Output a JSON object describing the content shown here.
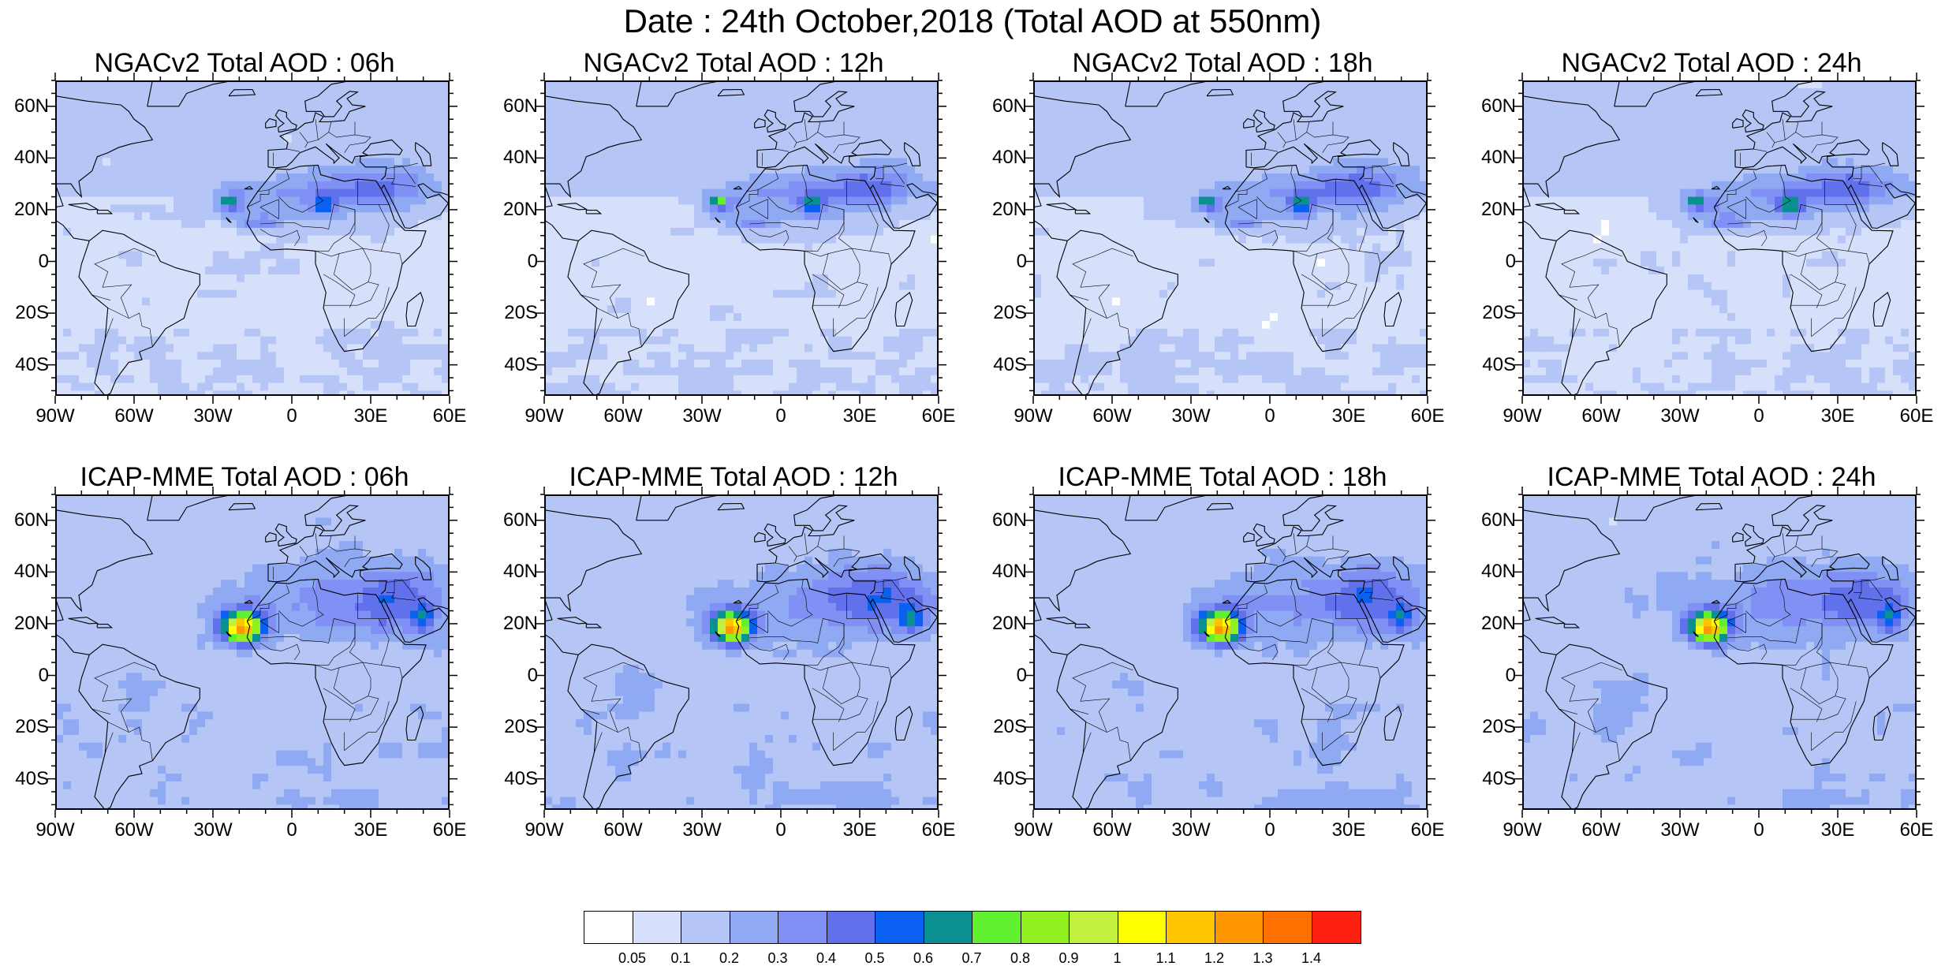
{
  "title": "Date : 24th October,2018 (Total AOD at 550nm)",
  "panels": [
    {
      "title": "NGACv2 Total AOD : 06h",
      "model": "NGACv2",
      "hour": 6
    },
    {
      "title": "NGACv2 Total AOD : 12h",
      "model": "NGACv2",
      "hour": 12
    },
    {
      "title": "NGACv2 Total AOD : 18h",
      "model": "NGACv2",
      "hour": 18
    },
    {
      "title": "NGACv2 Total AOD : 24h",
      "model": "NGACv2",
      "hour": 24
    },
    {
      "title": "ICAP-MME Total AOD : 06h",
      "model": "ICAP-MME",
      "hour": 6
    },
    {
      "title": "ICAP-MME Total AOD : 12h",
      "model": "ICAP-MME",
      "hour": 12
    },
    {
      "title": "ICAP-MME Total AOD : 18h",
      "model": "ICAP-MME",
      "hour": 18
    },
    {
      "title": "ICAP-MME Total AOD : 24h",
      "model": "ICAP-MME",
      "hour": 24
    }
  ],
  "lat_labels": [
    "60N",
    "40N",
    "20N",
    "0",
    "20S",
    "40S"
  ],
  "lon_labels": [
    "90W",
    "60W",
    "30W",
    "0",
    "30E",
    "60E"
  ],
  "colorbar": {
    "colors": [
      "#ffffff",
      "#d7e0fb",
      "#b4c5f6",
      "#8fa9f3",
      "#8090f5",
      "#6170eb",
      "#0a60f0",
      "#0a9090",
      "#60f030",
      "#90f020",
      "#c0f040",
      "#ffff00",
      "#ffc400",
      "#ff9800",
      "#ff7000",
      "#ff2010"
    ],
    "labels": [
      "0.05",
      "0.1",
      "0.2",
      "0.3",
      "0.4",
      "0.5",
      "0.6",
      "0.7",
      "0.8",
      "0.9",
      "1",
      "1.1",
      "1.2",
      "1.3",
      "1.4"
    ]
  }
}
